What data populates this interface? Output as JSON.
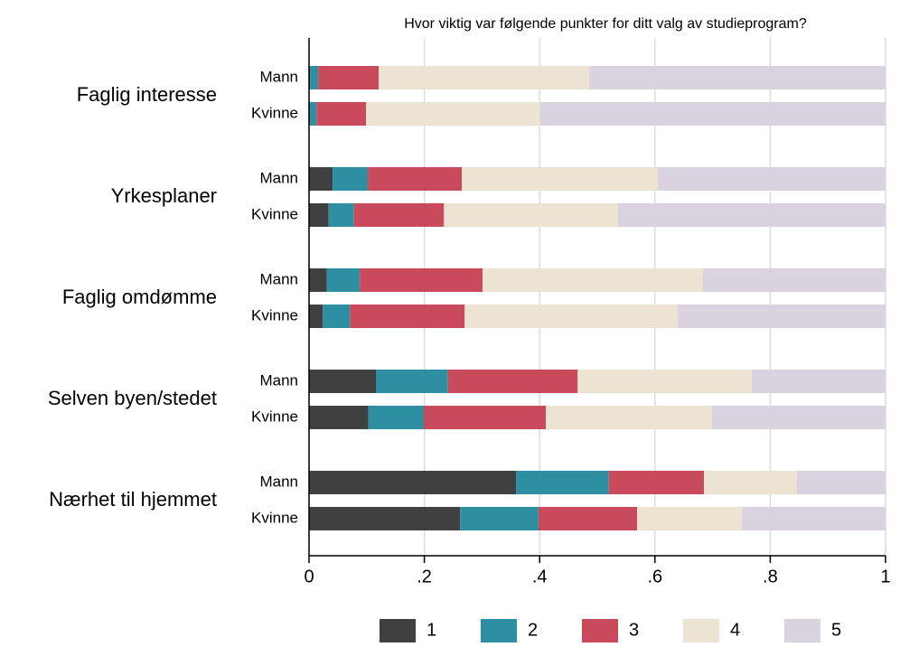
{
  "chart_data": {
    "type": "stacked-hbar",
    "title": "Hvor viktig var følgende punkter for ditt valg av studieprogram?",
    "groups": [
      "Faglig interesse",
      "Yrkesplaner",
      "Faglig omdømme",
      "Selven byen/stedet",
      "Nærhet til hjemmet"
    ],
    "subcategories": [
      "Mann",
      "Kvinne"
    ],
    "series": [
      {
        "name": "1",
        "color": "#404040",
        "values": [
          0.002,
          0.002,
          0.041,
          0.034,
          0.031,
          0.024,
          0.116,
          0.103,
          0.359,
          0.262
        ]
      },
      {
        "name": "2",
        "color": "#2e8fa3",
        "values": [
          0.014,
          0.011,
          0.061,
          0.044,
          0.057,
          0.047,
          0.125,
          0.096,
          0.161,
          0.136
        ]
      },
      {
        "name": "3",
        "color": "#c94a5a",
        "values": [
          0.105,
          0.086,
          0.163,
          0.156,
          0.213,
          0.199,
          0.225,
          0.212,
          0.165,
          0.171
        ]
      },
      {
        "name": "4",
        "color": "#ede3d3",
        "values": [
          0.365,
          0.302,
          0.34,
          0.302,
          0.382,
          0.369,
          0.302,
          0.288,
          0.161,
          0.182
        ]
      },
      {
        "name": "5",
        "color": "#d9d3df",
        "values": [
          0.514,
          0.599,
          0.395,
          0.464,
          0.317,
          0.361,
          0.232,
          0.301,
          0.154,
          0.249
        ]
      }
    ],
    "xlim": [
      0,
      1
    ],
    "xticks": [
      0,
      {
        "value": 0.2,
        "label": ".2"
      },
      {
        "value": 0.4,
        "label": ".4"
      },
      {
        "value": 0.6,
        "label": ".6"
      },
      {
        "value": 0.8,
        "label": ".8"
      },
      1
    ],
    "grid": true
  }
}
